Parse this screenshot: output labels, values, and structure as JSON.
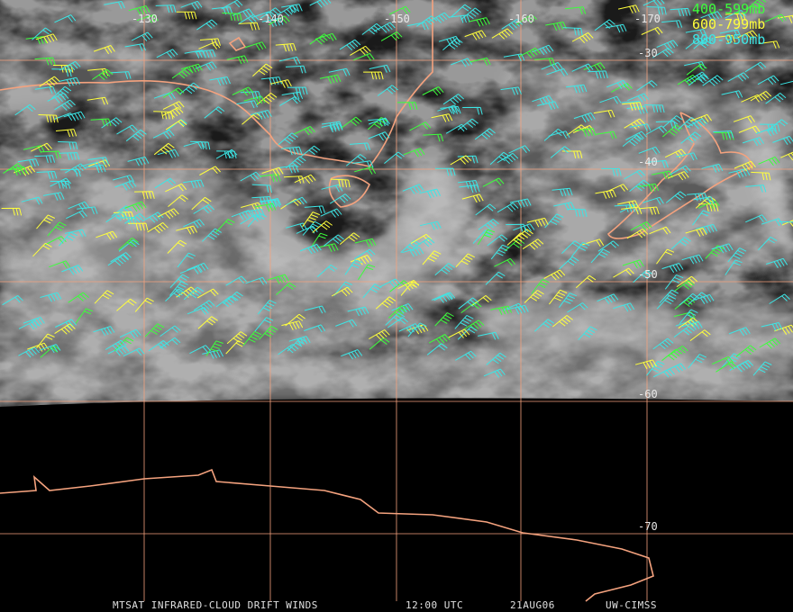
{
  "map": {
    "longitude_labels": [
      "-130",
      "-140",
      "-150",
      "-160",
      "-170"
    ],
    "latitude_labels": [
      "-30",
      "-40",
      "-50",
      "-60",
      "-70"
    ]
  },
  "legend": {
    "items": [
      {
        "label": "400-599mb",
        "color": "#3cff3c"
      },
      {
        "label": "600-799mb",
        "color": "#ffff3c"
      },
      {
        "label": "800-950mb",
        "color": "#3ce6e6"
      }
    ]
  },
  "caption": {
    "product": "MTSAT INFRARED-CLOUD DRIFT WINDS",
    "time": "12:00 UTC",
    "date": "21AUG06",
    "source": "UW-CIMSS"
  }
}
